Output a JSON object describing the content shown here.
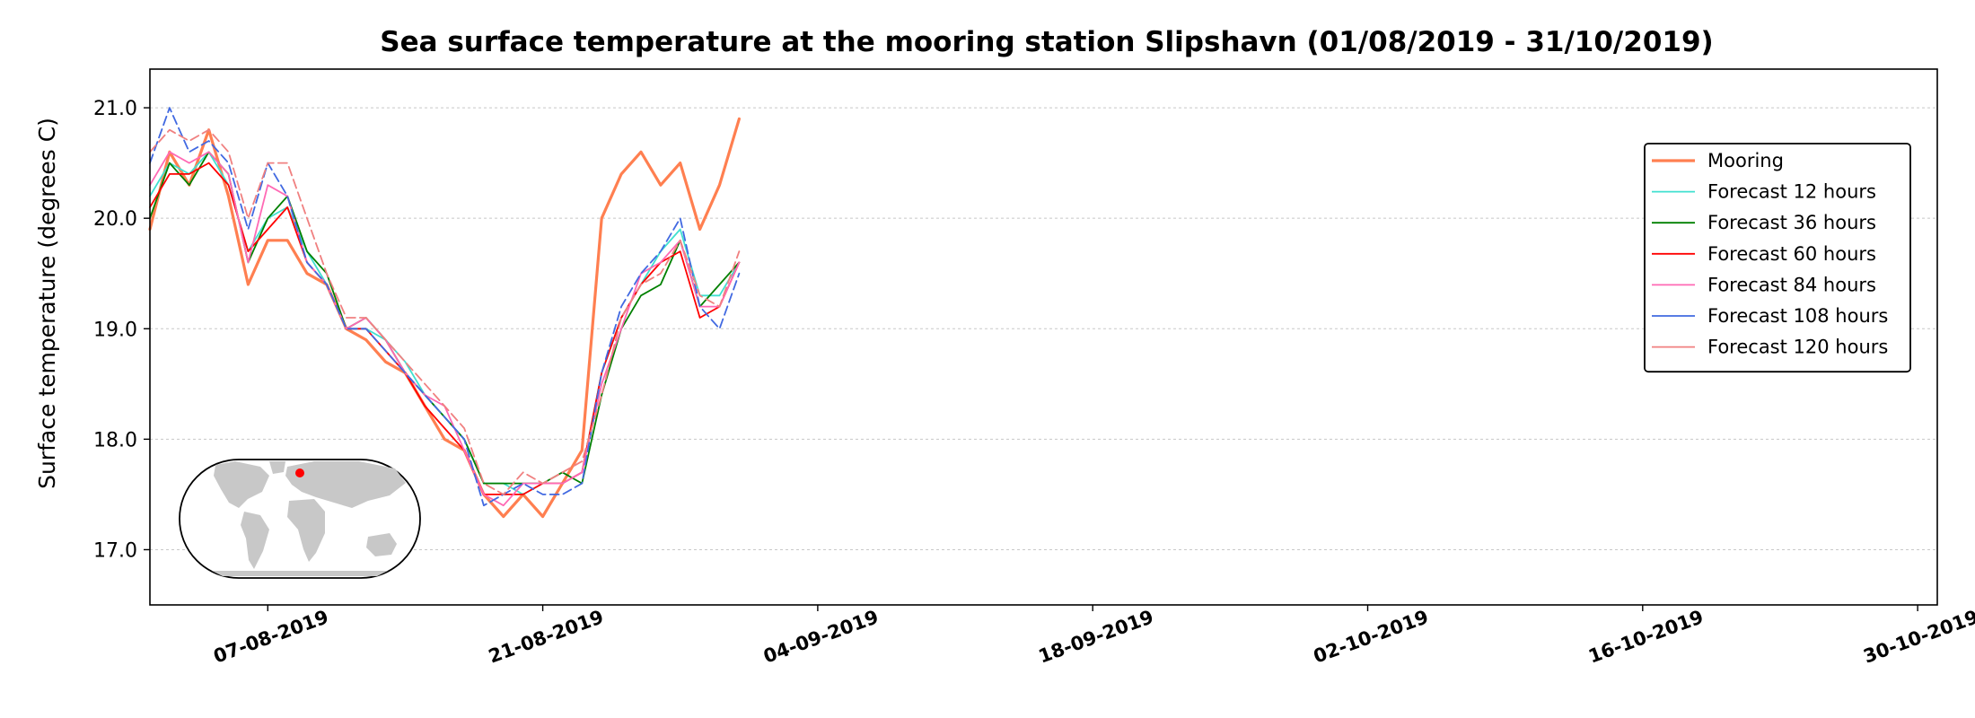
{
  "chart_data": {
    "type": "line",
    "title": "Sea surface temperature at the mooring station Slipshavn (01/08/2019 - 31/10/2019)",
    "xlabel": "",
    "ylabel": "Surface temperature (degrees C)",
    "xlim": [
      "2019-08-01",
      "2019-10-31"
    ],
    "ylim": [
      16.5,
      21.35
    ],
    "y_ticks": [
      "17.0",
      "18.0",
      "19.0",
      "20.0",
      "21.0"
    ],
    "x_ticks": [
      "07-08-2019",
      "21-08-2019",
      "04-09-2019",
      "18-09-2019",
      "02-10-2019",
      "16-10-2019",
      "30-10-2019"
    ],
    "grid": "horizontal dashed",
    "legend_position": "upper right",
    "inset": "world-map",
    "inset_marker_color": "#ff0000",
    "x": [
      "2019-08-01",
      "2019-08-02",
      "2019-08-03",
      "2019-08-04",
      "2019-08-05",
      "2019-08-06",
      "2019-08-07",
      "2019-08-08",
      "2019-08-09",
      "2019-08-10",
      "2019-08-11",
      "2019-08-12",
      "2019-08-13",
      "2019-08-14",
      "2019-08-15",
      "2019-08-16",
      "2019-08-17",
      "2019-08-18",
      "2019-08-19",
      "2019-08-20",
      "2019-08-21",
      "2019-08-22",
      "2019-08-23",
      "2019-08-24",
      "2019-08-25",
      "2019-08-26",
      "2019-08-27",
      "2019-08-28",
      "2019-08-29",
      "2019-08-30",
      "2019-08-31"
    ],
    "series": [
      {
        "name": "Mooring",
        "color": "#ff7f50",
        "width": 3.2,
        "dash": "",
        "values": [
          19.9,
          20.6,
          20.3,
          20.8,
          20.2,
          19.4,
          19.8,
          19.8,
          19.5,
          19.4,
          19.0,
          18.9,
          18.7,
          18.6,
          18.3,
          18.0,
          17.9,
          17.5,
          17.3,
          17.5,
          17.3,
          17.6,
          17.9,
          20.0,
          20.4,
          20.6,
          20.3,
          20.5,
          19.9,
          20.3,
          20.9
        ]
      },
      {
        "name": "Forecast 12 hours",
        "color": "#40e0d0",
        "width": 1.8,
        "dash": "",
        "values": [
          20.2,
          20.5,
          20.4,
          20.6,
          20.3,
          19.7,
          20.0,
          20.1,
          19.7,
          19.4,
          19.0,
          19.0,
          18.9,
          18.7,
          18.4,
          18.2,
          18.0,
          17.6,
          17.6,
          17.5,
          17.6,
          17.6,
          17.7,
          18.6,
          19.1,
          19.4,
          19.7,
          19.9,
          19.3,
          19.3,
          19.6
        ]
      },
      {
        "name": "Forecast 36 hours",
        "color": "#008000",
        "width": 1.8,
        "dash": "",
        "values": [
          20.0,
          20.5,
          20.3,
          20.6,
          20.4,
          19.6,
          20.0,
          20.2,
          19.7,
          19.5,
          19.0,
          19.1,
          18.9,
          18.6,
          18.4,
          18.2,
          18.0,
          17.6,
          17.6,
          17.6,
          17.6,
          17.7,
          17.6,
          18.4,
          19.0,
          19.3,
          19.4,
          19.8,
          19.2,
          19.4,
          19.6
        ]
      },
      {
        "name": "Forecast 60 hours",
        "color": "#ff0000",
        "width": 1.8,
        "dash": "",
        "values": [
          20.1,
          20.4,
          20.4,
          20.5,
          20.3,
          19.7,
          19.9,
          20.1,
          19.6,
          19.4,
          19.0,
          19.0,
          18.8,
          18.6,
          18.3,
          18.1,
          17.9,
          17.5,
          17.5,
          17.5,
          17.6,
          17.6,
          17.7,
          18.6,
          19.1,
          19.4,
          19.6,
          19.7,
          19.1,
          19.2,
          19.6
        ]
      },
      {
        "name": "Forecast 84 hours",
        "color": "#ff69b4",
        "width": 1.8,
        "dash": "",
        "values": [
          20.3,
          20.6,
          20.5,
          20.6,
          20.4,
          19.6,
          20.3,
          20.2,
          19.6,
          19.4,
          19.0,
          19.1,
          18.9,
          18.6,
          18.4,
          18.3,
          17.9,
          17.5,
          17.4,
          17.6,
          17.6,
          17.6,
          17.7,
          18.5,
          19.0,
          19.5,
          19.6,
          19.8,
          19.2,
          19.2,
          19.6
        ]
      },
      {
        "name": "Forecast 108 hours",
        "color": "#4169e1",
        "width": 1.8,
        "dash": "10 5",
        "values": [
          20.5,
          21.0,
          20.6,
          20.7,
          20.5,
          19.9,
          20.5,
          20.2,
          19.6,
          19.4,
          19.0,
          19.0,
          18.8,
          18.6,
          18.4,
          18.2,
          18.0,
          17.4,
          17.5,
          17.6,
          17.5,
          17.5,
          17.6,
          18.6,
          19.2,
          19.5,
          19.7,
          20.0,
          19.2,
          19.0,
          19.5
        ]
      },
      {
        "name": "Forecast 120 hours",
        "color": "#f08080",
        "width": 1.8,
        "dash": "10 5",
        "values": [
          20.6,
          20.8,
          20.7,
          20.8,
          20.6,
          20.0,
          20.5,
          20.5,
          20.0,
          19.5,
          19.1,
          19.1,
          18.9,
          18.7,
          18.5,
          18.3,
          18.1,
          17.6,
          17.5,
          17.7,
          17.6,
          17.7,
          17.8,
          18.4,
          19.1,
          19.4,
          19.5,
          19.8,
          19.3,
          19.2,
          19.7
        ]
      }
    ]
  }
}
